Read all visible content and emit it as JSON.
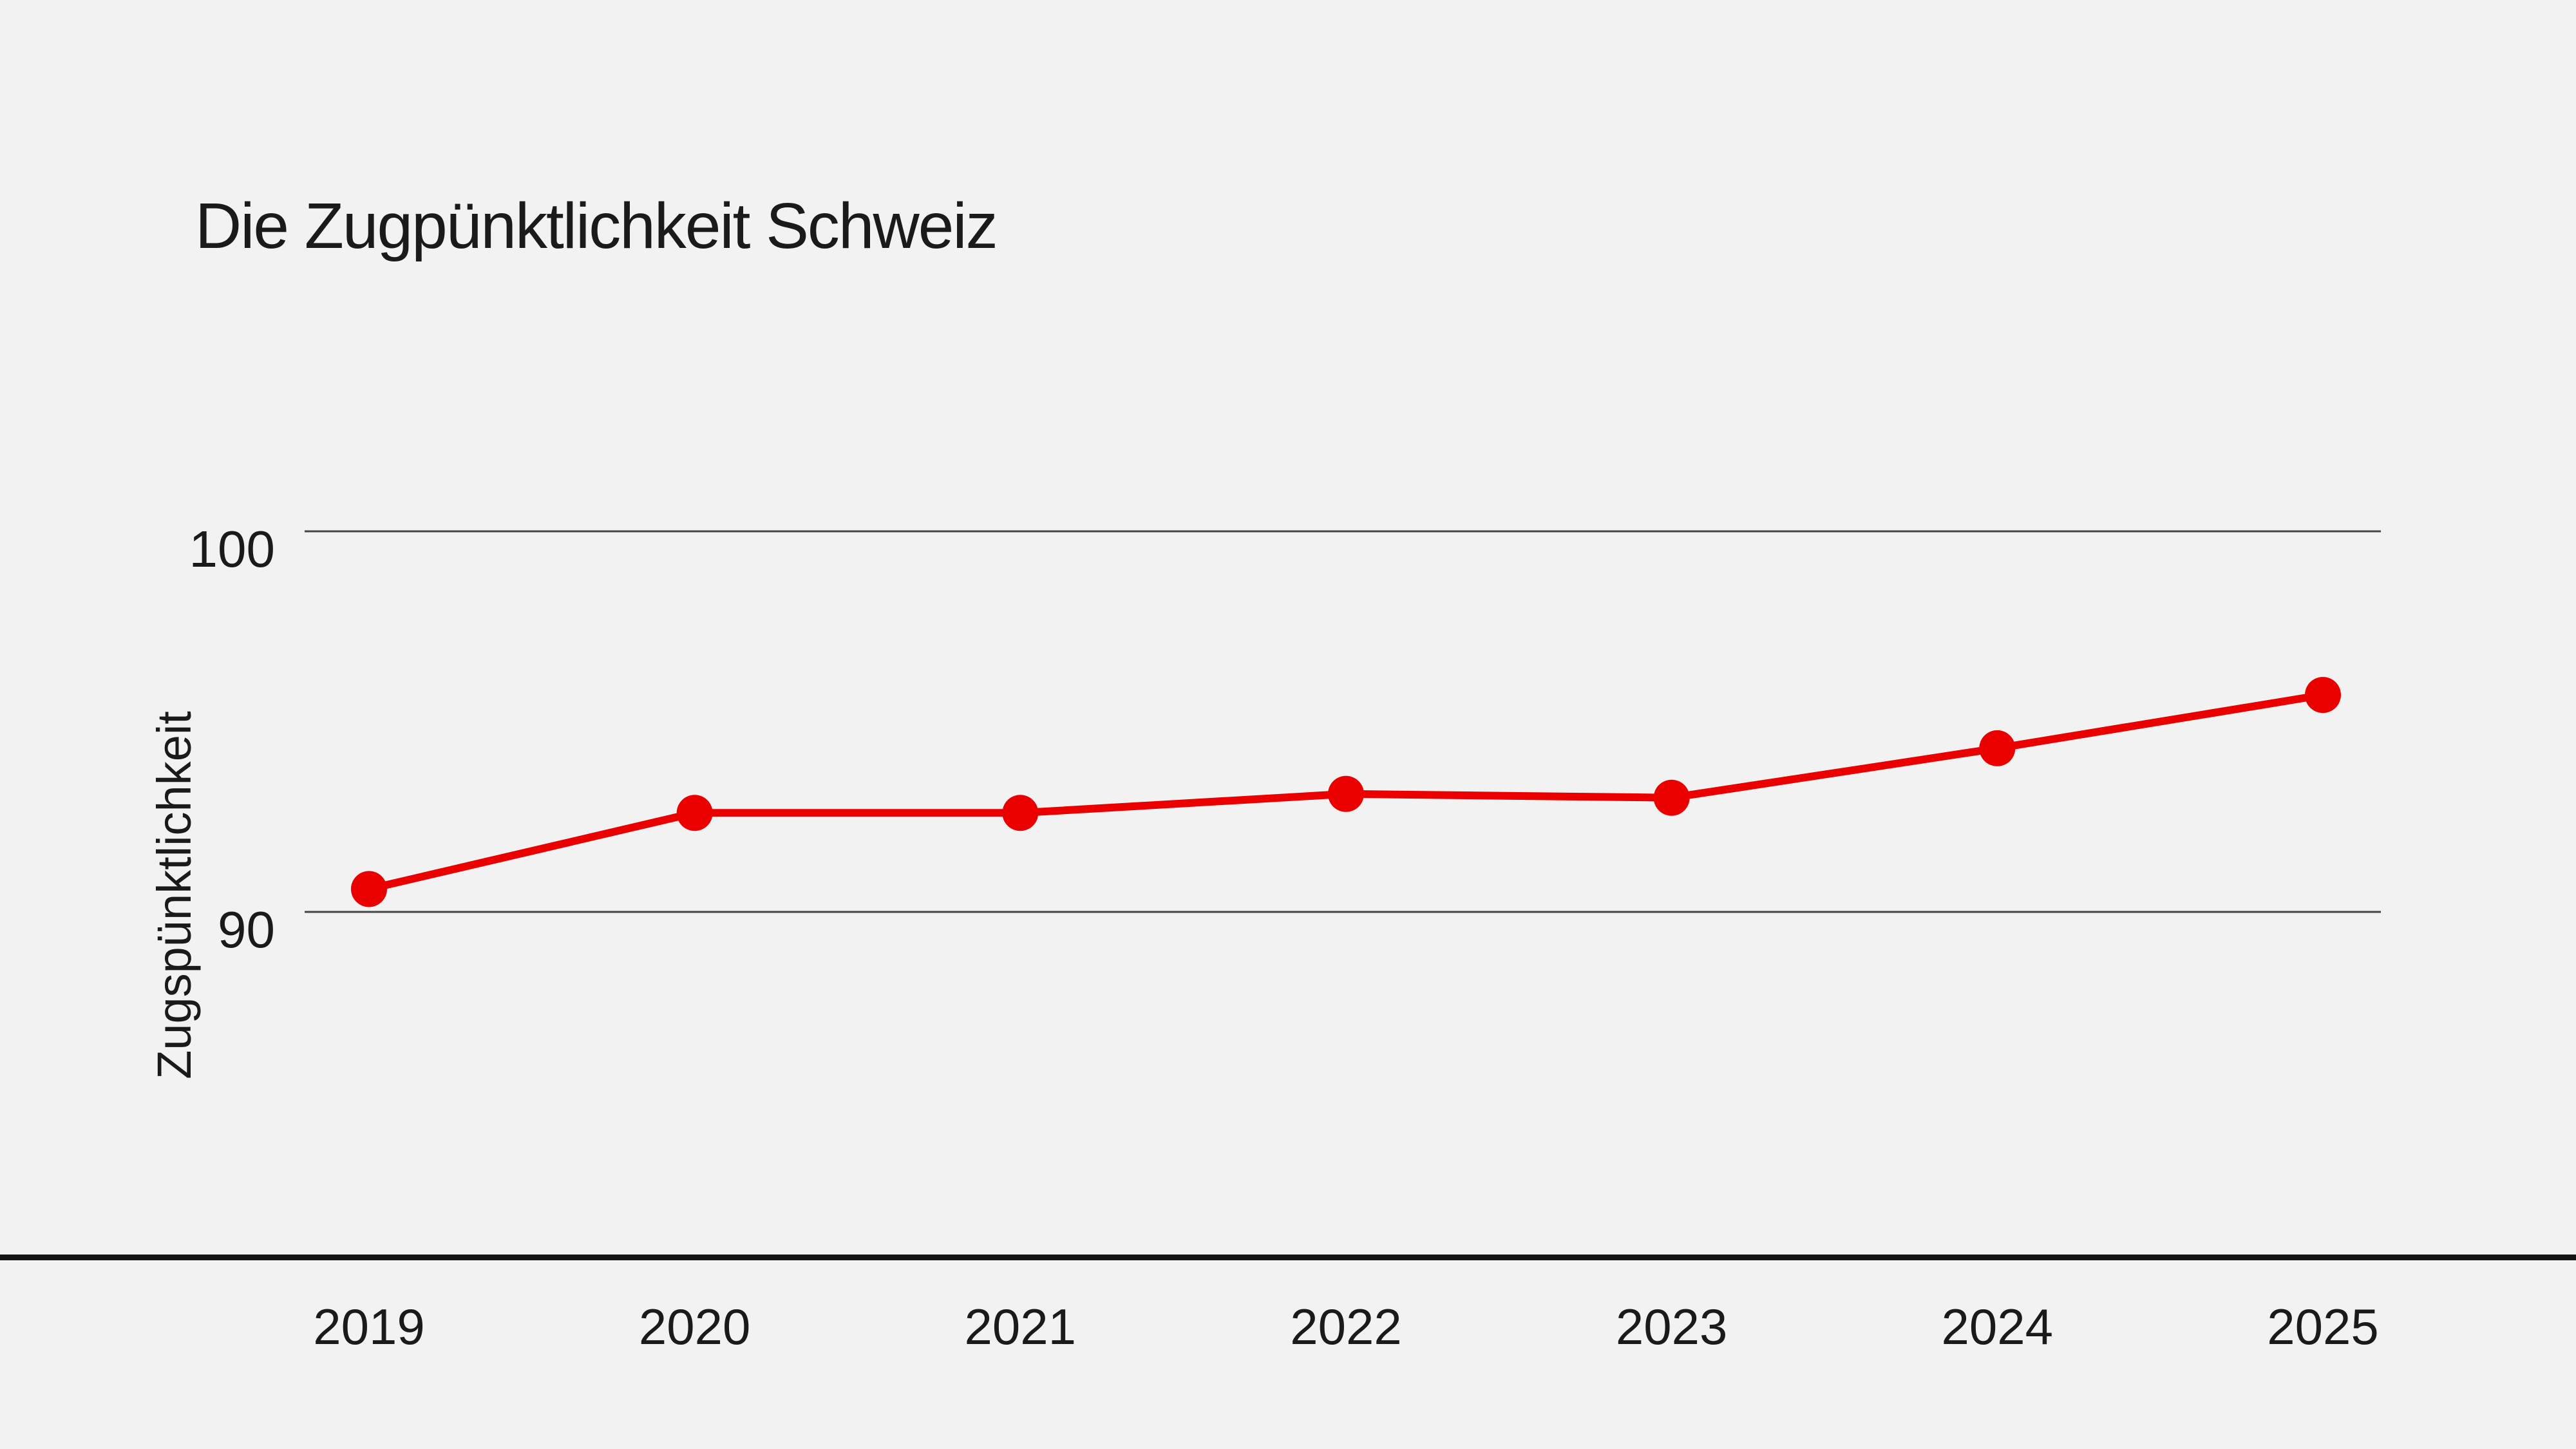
{
  "header": {
    "title": "Die Zugpünktlichkeit Schweiz"
  },
  "colors": {
    "background": "#f2f2f2",
    "series_red": "#eb0000",
    "gridline": "#454545",
    "axis_line": "#141414",
    "text": "#1a1a1a"
  },
  "chart_data": {
    "type": "line",
    "title": "Die Zugpünktlichkeit Schweiz",
    "xlabel": "",
    "ylabel": "Zugspünktlichkeit",
    "categories": [
      "2019",
      "2020",
      "2021",
      "2022",
      "2023",
      "2024",
      "2025"
    ],
    "series": [
      {
        "name": "Zugpünktlichkeit Schweiz",
        "values": [
          90.6,
          92.6,
          92.6,
          93.1,
          93.0,
          94.3,
          95.7
        ]
      }
    ],
    "yticks": [
      "100",
      "90"
    ],
    "ytick_values": [
      100,
      90
    ],
    "ylim": [
      81,
      103
    ],
    "grid": "horizontal",
    "legend": "none",
    "marker": "circle",
    "line_color": "#eb0000"
  }
}
